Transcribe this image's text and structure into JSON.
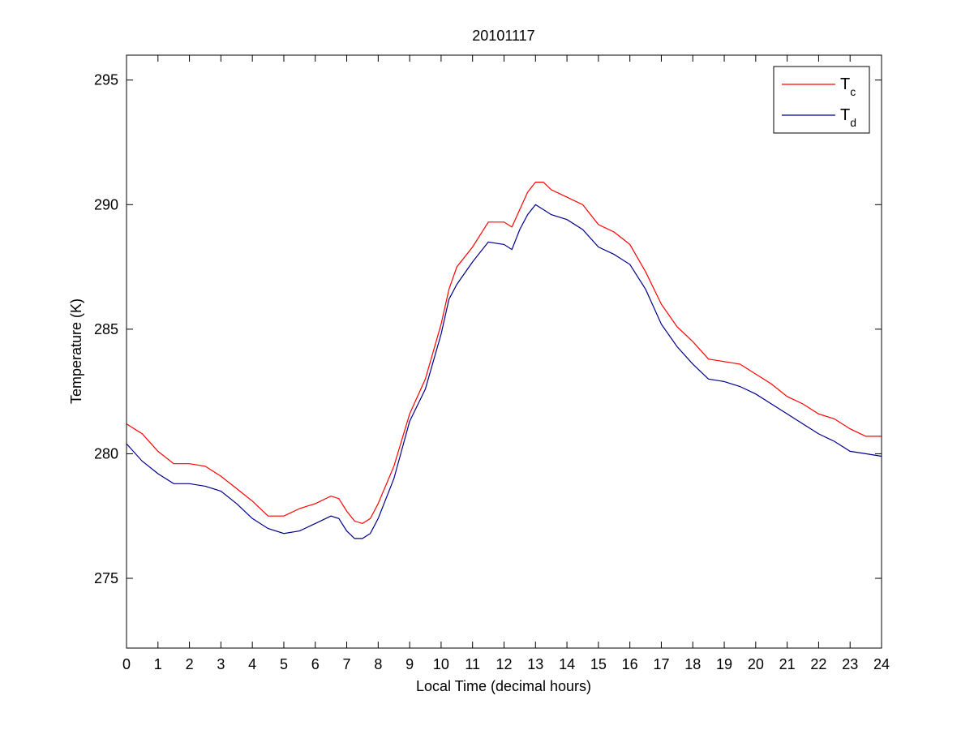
{
  "chart_data": {
    "type": "line",
    "title": "20101117",
    "xlabel": "Local Time (decimal hours)",
    "ylabel": "Temperature (K)",
    "xlim": [
      0,
      24
    ],
    "ylim": [
      272.2,
      296.0
    ],
    "xticks": [
      0,
      1,
      2,
      3,
      4,
      5,
      6,
      7,
      8,
      9,
      10,
      11,
      12,
      13,
      14,
      15,
      16,
      17,
      18,
      19,
      20,
      21,
      22,
      23,
      24
    ],
    "xtick_labels": [
      "0",
      "1",
      "2",
      "3",
      "4",
      "5",
      "6",
      "7",
      "8",
      "9",
      "10",
      "11",
      "12",
      "13",
      "14",
      "15",
      "16",
      "17",
      "18",
      "19",
      "20",
      "21",
      "22",
      "23",
      "24"
    ],
    "yticks": [
      275,
      280,
      285,
      290,
      295
    ],
    "ytick_labels": [
      "275",
      "280",
      "285",
      "290",
      "295"
    ],
    "grid": false,
    "legend_position": "top-right",
    "series": [
      {
        "name": "T",
        "name_subscript": "c",
        "color": "#ff0000",
        "x": [
          0,
          0.5,
          1,
          1.5,
          2,
          2.5,
          3,
          3.5,
          4,
          4.5,
          5,
          5.5,
          6,
          6.5,
          6.75,
          7,
          7.25,
          7.5,
          7.75,
          8,
          8.5,
          9,
          9.5,
          10,
          10.25,
          10.5,
          11,
          11.5,
          12,
          12.25,
          12.5,
          12.75,
          13,
          13.25,
          13.5,
          14,
          14.5,
          15,
          15.5,
          16,
          16.5,
          17,
          17.5,
          18,
          18.5,
          19,
          19.5,
          20,
          20.5,
          21,
          21.5,
          22,
          22.5,
          23,
          23.5,
          24
        ],
        "y": [
          281.2,
          280.8,
          280.1,
          279.6,
          279.6,
          279.5,
          279.1,
          278.6,
          278.1,
          277.5,
          277.5,
          277.8,
          278.0,
          278.3,
          278.2,
          277.7,
          277.3,
          277.2,
          277.4,
          278.0,
          279.5,
          281.6,
          283.0,
          285.2,
          286.6,
          287.5,
          288.3,
          289.3,
          289.3,
          289.1,
          289.8,
          290.5,
          290.9,
          290.9,
          290.6,
          290.3,
          290.0,
          289.2,
          288.9,
          288.4,
          287.3,
          286.0,
          285.1,
          284.5,
          283.8,
          283.7,
          283.6,
          283.2,
          282.8,
          282.3,
          282.0,
          281.6,
          281.4,
          281.0,
          280.7,
          280.7
        ]
      },
      {
        "name": "T",
        "name_subscript": "d",
        "color": "#00008b",
        "x": [
          0,
          0.5,
          1,
          1.5,
          2,
          2.5,
          3,
          3.5,
          4,
          4.5,
          5,
          5.5,
          6,
          6.5,
          6.75,
          7,
          7.25,
          7.5,
          7.75,
          8,
          8.5,
          9,
          9.5,
          10,
          10.25,
          10.5,
          11,
          11.5,
          12,
          12.25,
          12.5,
          12.75,
          13,
          13.25,
          13.5,
          14,
          14.5,
          15,
          15.5,
          16,
          16.5,
          17,
          17.5,
          18,
          18.5,
          19,
          19.5,
          20,
          20.5,
          21,
          21.5,
          22,
          22.5,
          23,
          23.5,
          24
        ],
        "y": [
          280.4,
          279.7,
          279.2,
          278.8,
          278.8,
          278.7,
          278.5,
          278.0,
          277.4,
          277.0,
          276.8,
          276.9,
          277.2,
          277.5,
          277.4,
          276.9,
          276.6,
          276.6,
          276.8,
          277.4,
          279.0,
          281.3,
          282.6,
          284.8,
          286.2,
          286.8,
          287.7,
          288.5,
          288.4,
          288.2,
          289.0,
          289.6,
          290.0,
          289.8,
          289.6,
          289.4,
          289.0,
          288.3,
          288.0,
          287.6,
          286.6,
          285.2,
          284.3,
          283.6,
          283.0,
          282.9,
          282.7,
          282.4,
          282.0,
          281.6,
          281.2,
          280.8,
          280.5,
          280.1,
          280.0,
          279.9
        ]
      }
    ]
  }
}
